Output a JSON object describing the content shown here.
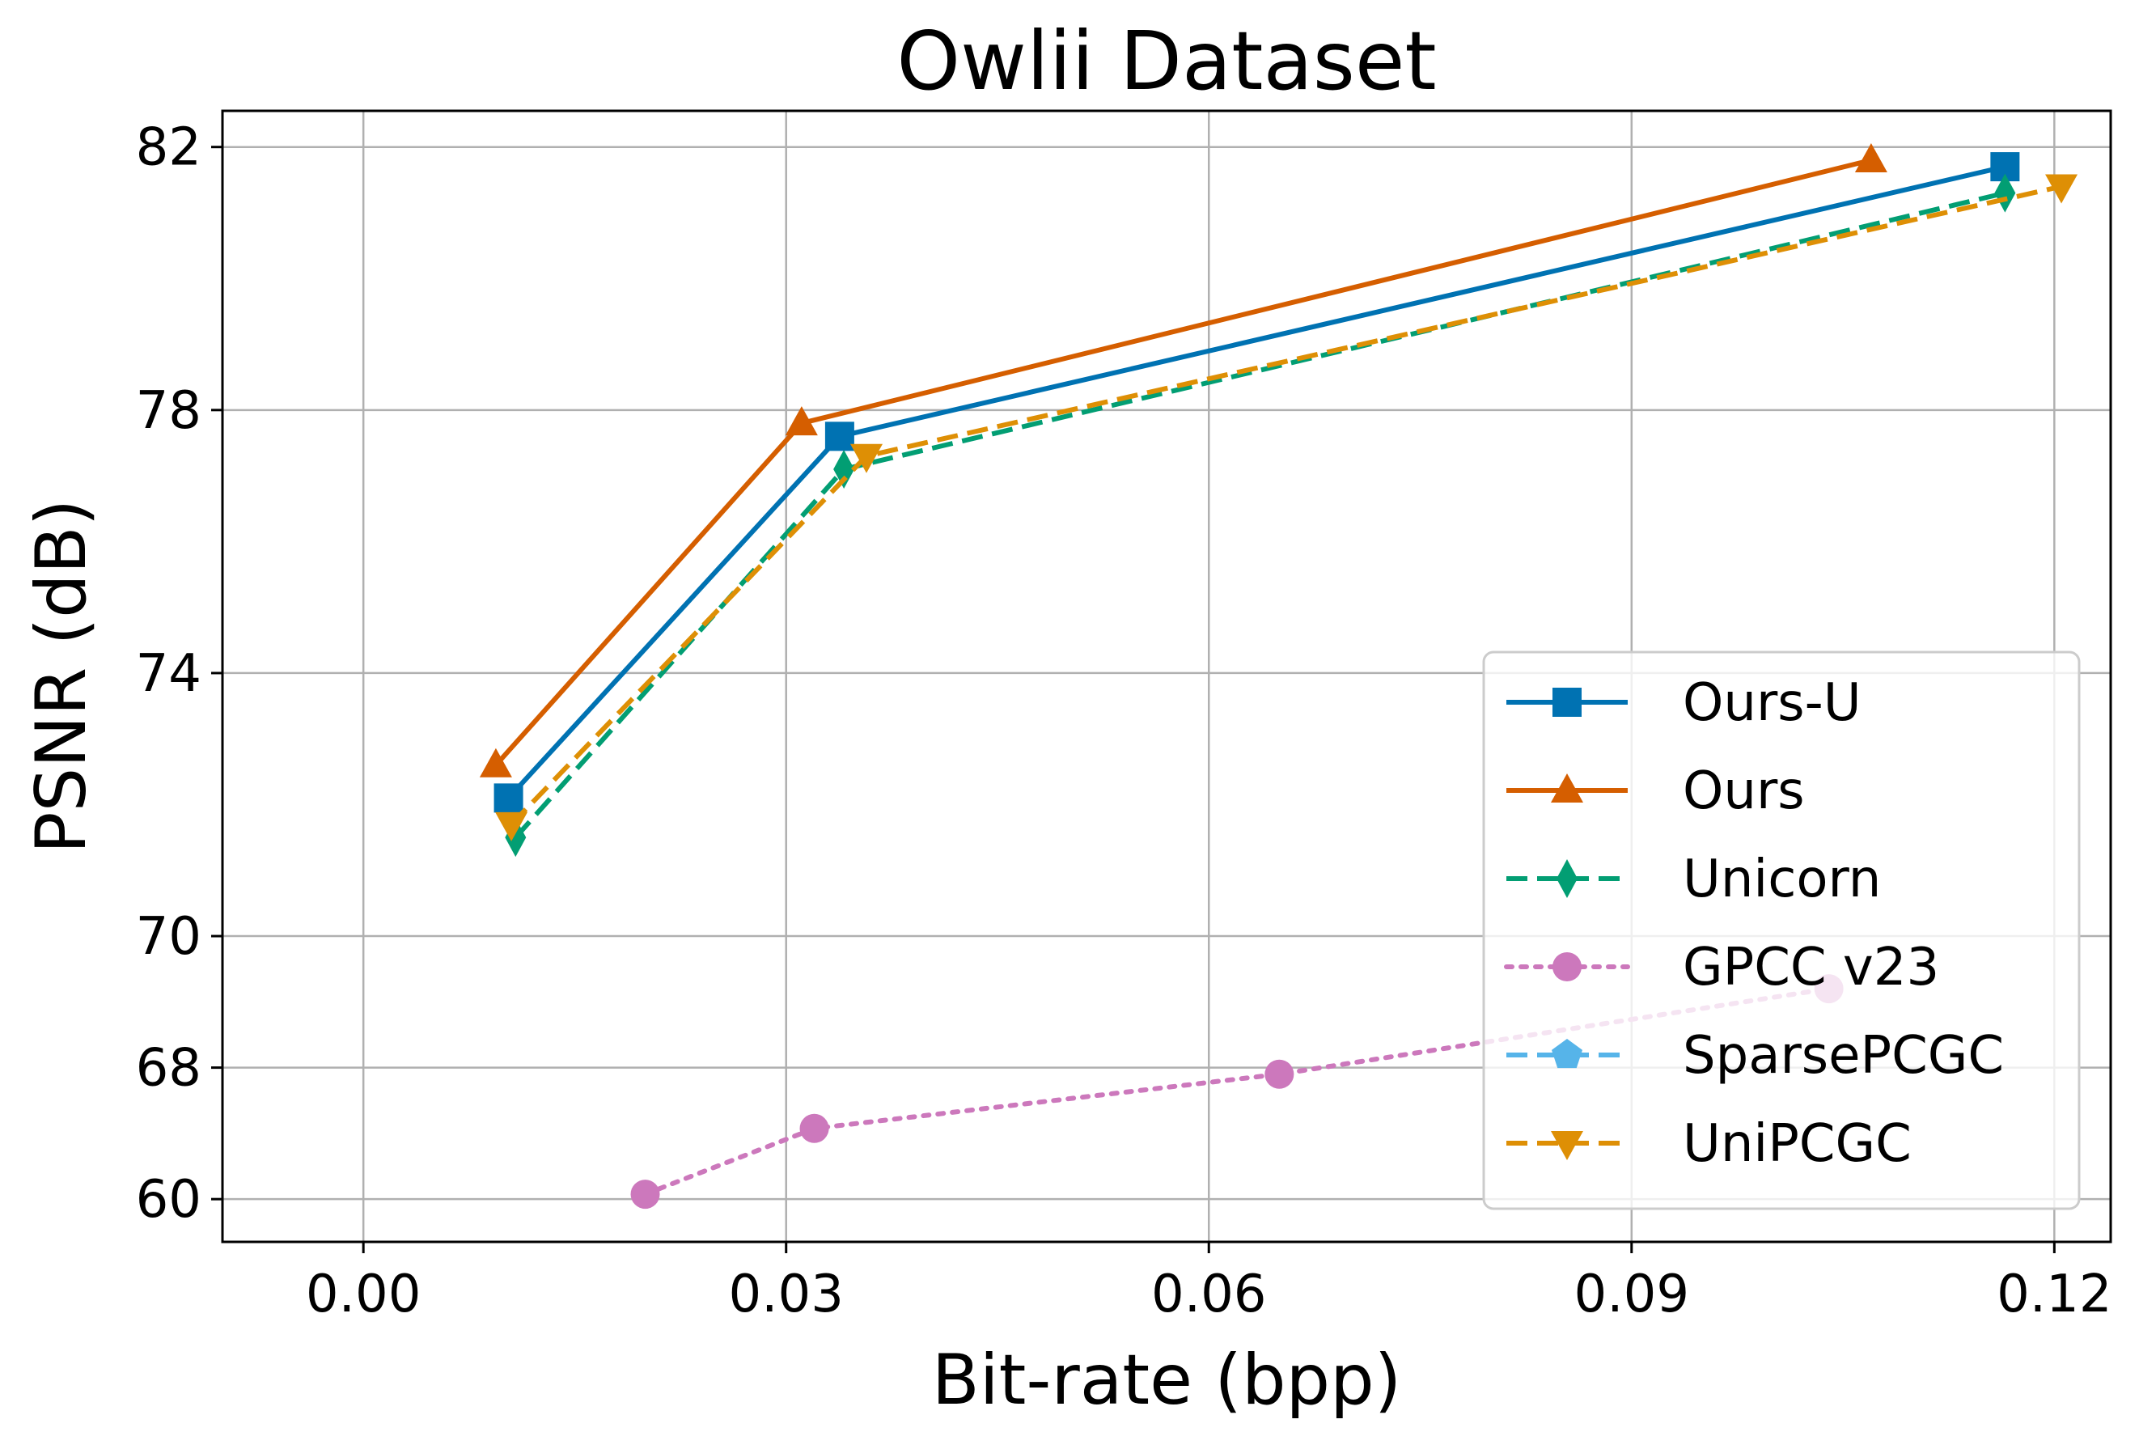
{
  "chart_data": {
    "type": "line",
    "title": "Owlii Dataset",
    "xlabel": "Bit-rate (bpp)",
    "ylabel": "PSNR (dB)",
    "xlim": [
      -0.01,
      0.124
    ],
    "x_ticks": [
      0.0,
      0.03,
      0.06,
      0.09,
      0.12
    ],
    "x_tick_labels": [
      "0.00",
      "0.03",
      "0.06",
      "0.09",
      "0.12"
    ],
    "y_tick_labels": [
      "60",
      "68",
      "70",
      "74",
      "78",
      "82"
    ],
    "y_tick_levels": [
      0,
      2,
      4,
      8,
      12,
      16
    ],
    "ylim_levels": [
      -0.65,
      16.55
    ],
    "y_axis_note": "broken axis: 60 to 68 spans 2 level units; 68 and above is linear in dB (level = value - 66)",
    "grid": true,
    "legend_position": "lower right",
    "series": [
      {
        "name": "Ours-U",
        "color": "#0072b2",
        "linestyle": "solid",
        "marker": "square",
        "points": [
          {
            "x": 0.0103,
            "y": 72.1
          },
          {
            "x": 0.0338,
            "y": 77.6
          },
          {
            "x": 0.1165,
            "y": 81.7
          }
        ]
      },
      {
        "name": "Ours",
        "color": "#d55e00",
        "linestyle": "solid",
        "marker": "triangle-up",
        "points": [
          {
            "x": 0.0094,
            "y": 72.6
          },
          {
            "x": 0.0311,
            "y": 77.8
          },
          {
            "x": 0.107,
            "y": 81.8
          }
        ]
      },
      {
        "name": "Unicorn",
        "color": "#029e73",
        "linestyle": "dashed",
        "marker": "thin-diamond",
        "points": [
          {
            "x": 0.0108,
            "y": 71.5
          },
          {
            "x": 0.0341,
            "y": 77.1
          },
          {
            "x": 0.1165,
            "y": 81.3
          }
        ]
      },
      {
        "name": "GPCC v23",
        "color": "#cc78bc",
        "linestyle": "dotted",
        "marker": "circle",
        "points": [
          {
            "x": 0.02,
            "y": 60.3
          },
          {
            "x": 0.032,
            "y": 64.3
          },
          {
            "x": 0.065,
            "y": 67.6
          },
          {
            "x": 0.104,
            "y": 69.2
          }
        ]
      },
      {
        "name": "SparsePCGC",
        "color": "#56b4e9",
        "linestyle": "dashed",
        "marker": "pentagon",
        "points": []
      },
      {
        "name": "UniPCGC",
        "color": "#de8f05",
        "linestyle": "dashed",
        "marker": "triangle-down",
        "points": [
          {
            "x": 0.0105,
            "y": 71.7
          },
          {
            "x": 0.0357,
            "y": 77.3
          },
          {
            "x": 0.1205,
            "y": 81.4
          }
        ]
      }
    ]
  }
}
